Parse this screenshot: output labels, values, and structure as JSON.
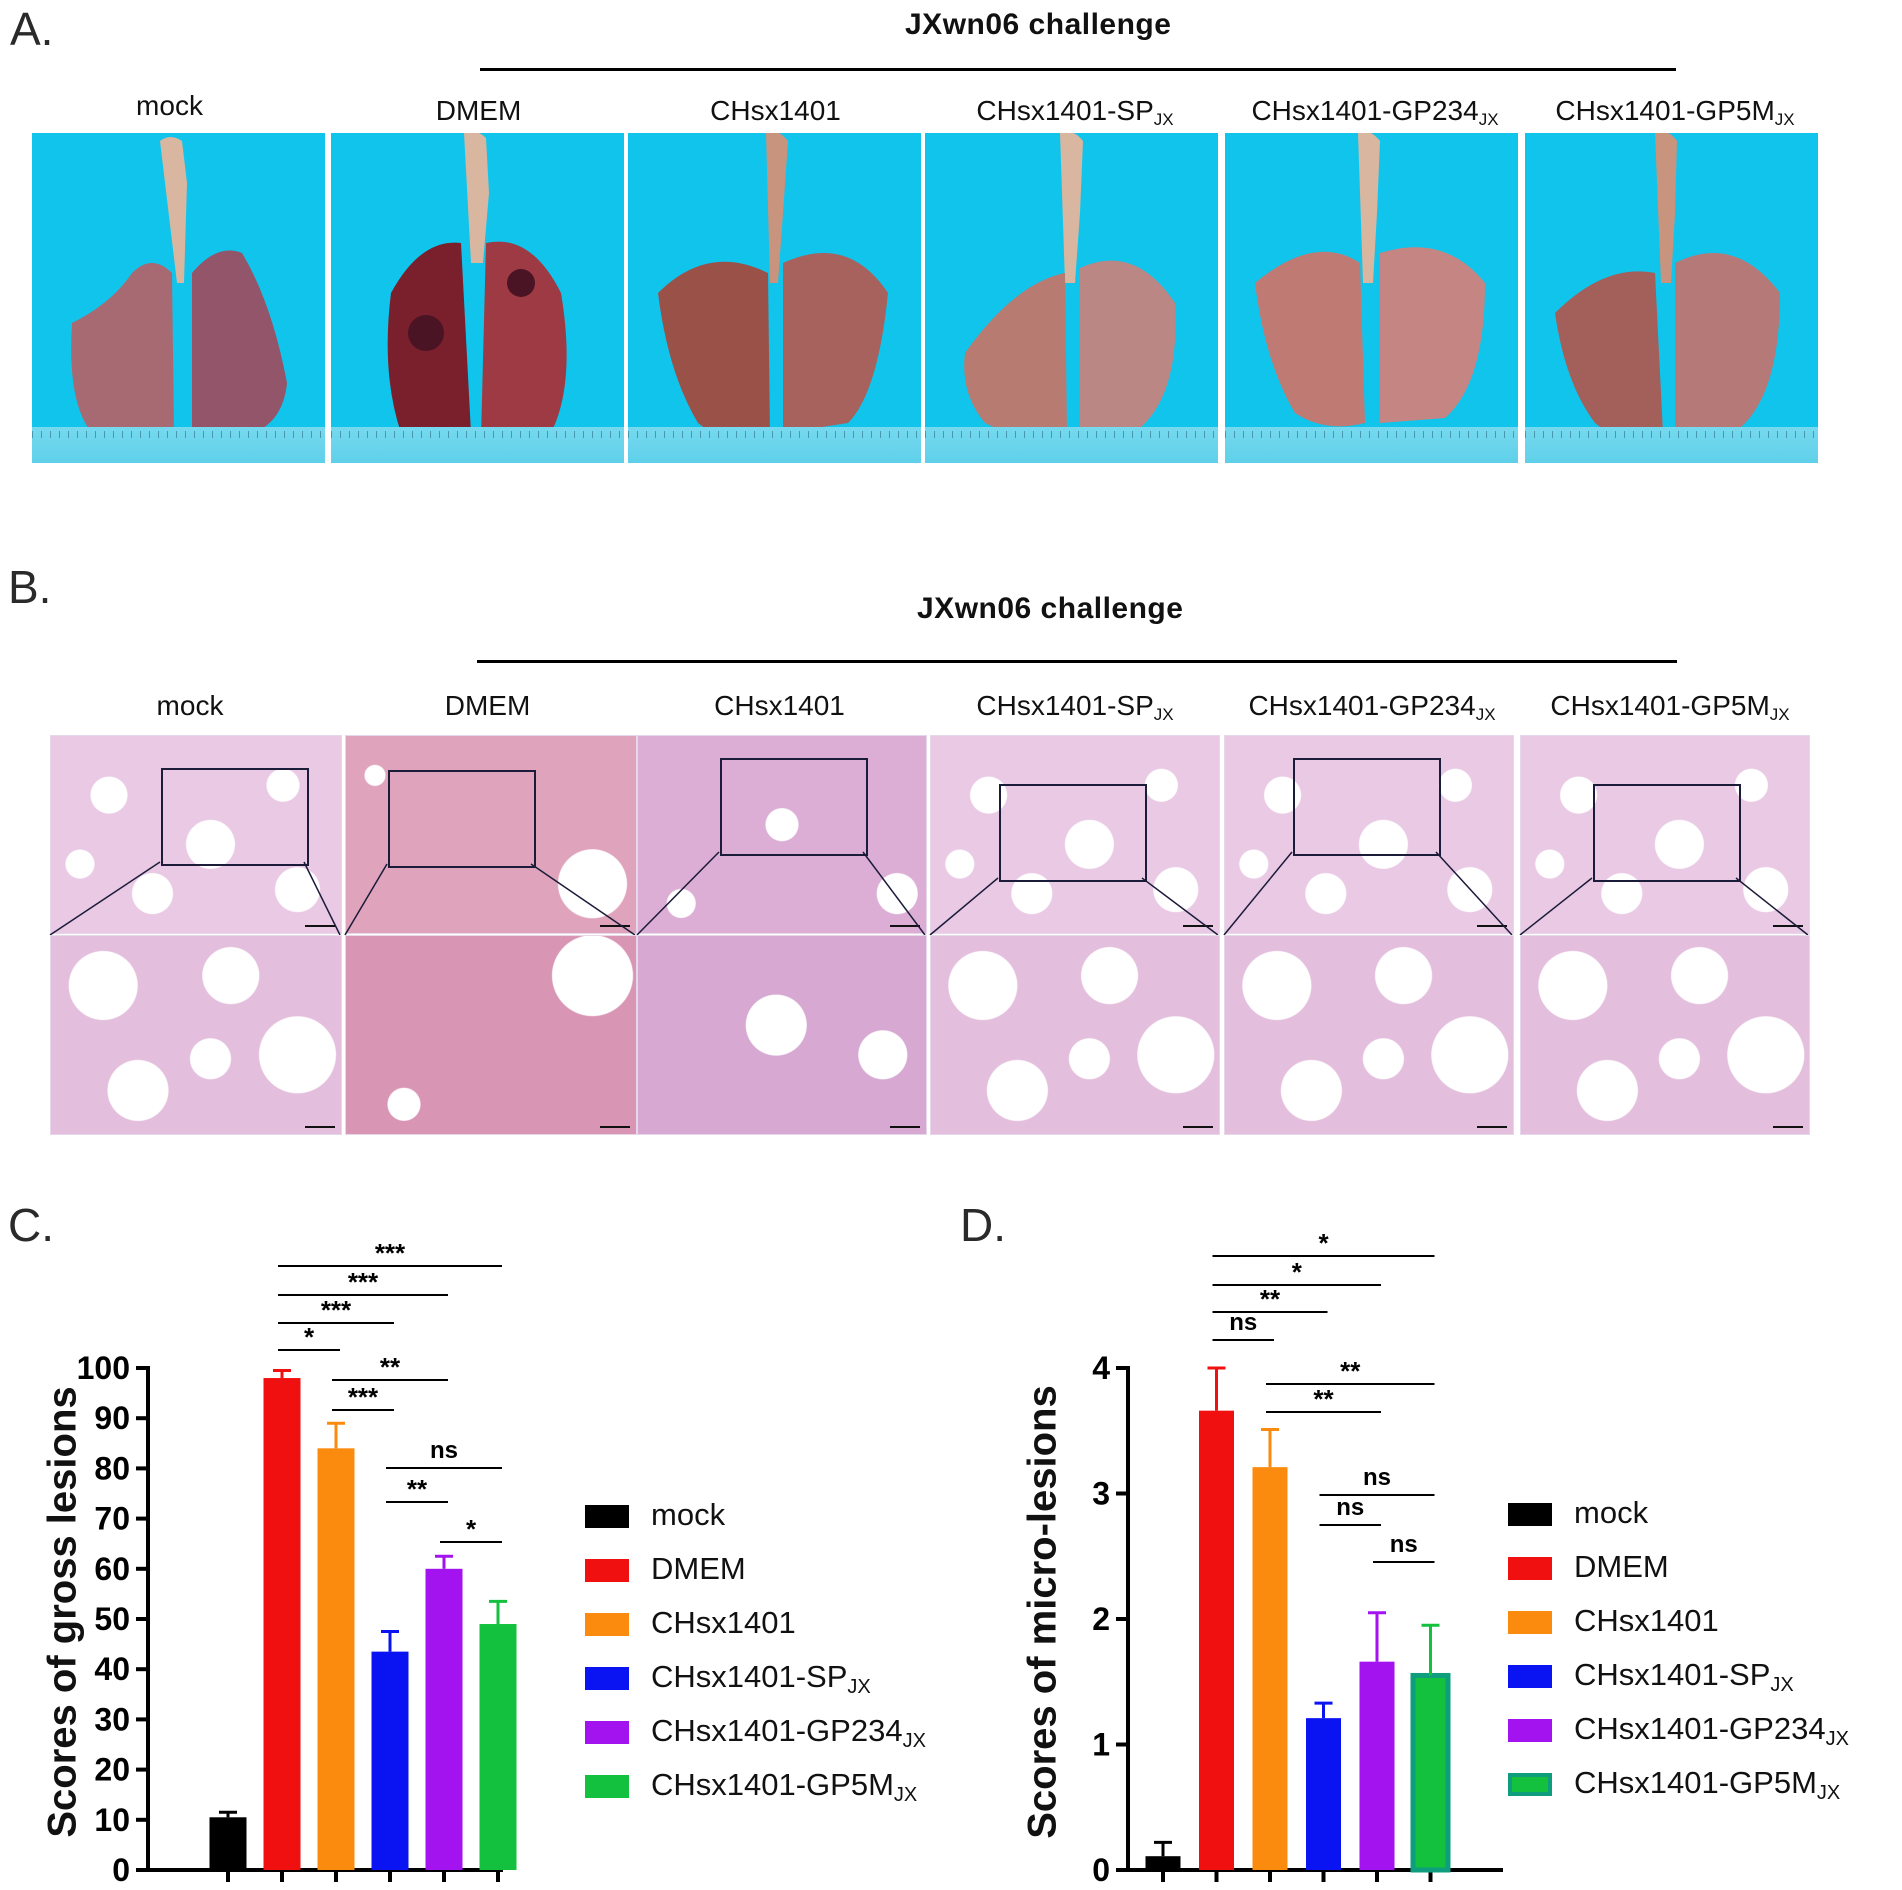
{
  "panel_a": {
    "letter": "A.",
    "challenge": "JXwn06 challenge",
    "columns": [
      {
        "label": "mock",
        "sub": ""
      },
      {
        "label": "DMEM",
        "sub": ""
      },
      {
        "label": "CHsx1401",
        "sub": ""
      },
      {
        "label": "CHsx1401-SP",
        "sub": "JX"
      },
      {
        "label": "CHsx1401-GP234",
        "sub": "JX"
      },
      {
        "label": "CHsx1401-GP5M",
        "sub": "JX"
      }
    ]
  },
  "panel_b": {
    "letter": "B.",
    "challenge": "JXwn06 challenge",
    "columns": [
      {
        "label": "mock",
        "sub": ""
      },
      {
        "label": "DMEM",
        "sub": ""
      },
      {
        "label": "CHsx1401",
        "sub": ""
      },
      {
        "label": "CHsx1401-SP",
        "sub": "JX"
      },
      {
        "label": "CHsx1401-GP234",
        "sub": "JX"
      },
      {
        "label": "CHsx1401-GP5M",
        "sub": "JX"
      }
    ]
  },
  "panel_c": {
    "letter": "C."
  },
  "panel_d": {
    "letter": "D."
  },
  "legend": [
    {
      "label": "mock",
      "sub": "",
      "color": "#000000"
    },
    {
      "label": "DMEM",
      "sub": "",
      "color": "#f01010"
    },
    {
      "label": "CHsx1401",
      "sub": "",
      "color": "#fb8b0e"
    },
    {
      "label": "CHsx1401-SP",
      "sub": "JX",
      "color": "#0a14f2"
    },
    {
      "label": "CHsx1401-GP234",
      "sub": "JX",
      "color": "#a313f0"
    },
    {
      "label": "CHsx1401-GP5M",
      "sub": "JX",
      "color": "#13c13f"
    }
  ],
  "chart_data": [
    {
      "type": "bar",
      "ylabel": "Scores of gross lesions",
      "categories": [
        "mock",
        "DMEM",
        "CHsx1401",
        "CHsx1401-SPJX",
        "CHsx1401-GP234JX",
        "CHsx1401-GP5MJX"
      ],
      "values": [
        10.5,
        98,
        84,
        43.5,
        60,
        49
      ],
      "errors": [
        1,
        1.5,
        5,
        4,
        2.5,
        4.5
      ],
      "ylim": [
        0,
        100
      ],
      "yticks": [
        "0",
        "10",
        "20",
        "30",
        "40",
        "50",
        "60",
        "70",
        "80",
        "90",
        "100"
      ],
      "significance": [
        {
          "from": 1,
          "to": 5,
          "label": "***"
        },
        {
          "from": 1,
          "to": 4,
          "label": "***"
        },
        {
          "from": 1,
          "to": 3,
          "label": "***"
        },
        {
          "from": 1,
          "to": 2,
          "label": "*"
        },
        {
          "from": 2,
          "to": 4,
          "label": "**"
        },
        {
          "from": 2,
          "to": 3,
          "label": "***"
        },
        {
          "from": 3,
          "to": 5,
          "label": "ns"
        },
        {
          "from": 3,
          "to": 4,
          "label": "**"
        },
        {
          "from": 4,
          "to": 5,
          "label": "*"
        }
      ]
    },
    {
      "type": "bar",
      "ylabel": "Scores of micro-lesions",
      "categories": [
        "mock",
        "DMEM",
        "CHsx1401",
        "CHsx1401-SPJX",
        "CHsx1401-GP234JX",
        "CHsx1401-GP5MJX"
      ],
      "values": [
        0.11,
        3.66,
        3.21,
        1.21,
        1.66,
        1.55
      ],
      "errors": [
        0.11,
        0.34,
        0.3,
        0.12,
        0.39,
        0.4
      ],
      "ylim": [
        0,
        4
      ],
      "yticks": [
        "0",
        "1",
        "2",
        "3",
        "4"
      ],
      "significance": [
        {
          "from": 1,
          "to": 5,
          "label": "*"
        },
        {
          "from": 1,
          "to": 4,
          "label": "*"
        },
        {
          "from": 1,
          "to": 3,
          "label": "**"
        },
        {
          "from": 1,
          "to": 2,
          "label": "ns"
        },
        {
          "from": 2,
          "to": 5,
          "label": "**"
        },
        {
          "from": 2,
          "to": 4,
          "label": "**"
        },
        {
          "from": 3,
          "to": 5,
          "label": "ns"
        },
        {
          "from": 3,
          "to": 4,
          "label": "ns"
        },
        {
          "from": 4,
          "to": 5,
          "label": "ns"
        }
      ]
    }
  ]
}
